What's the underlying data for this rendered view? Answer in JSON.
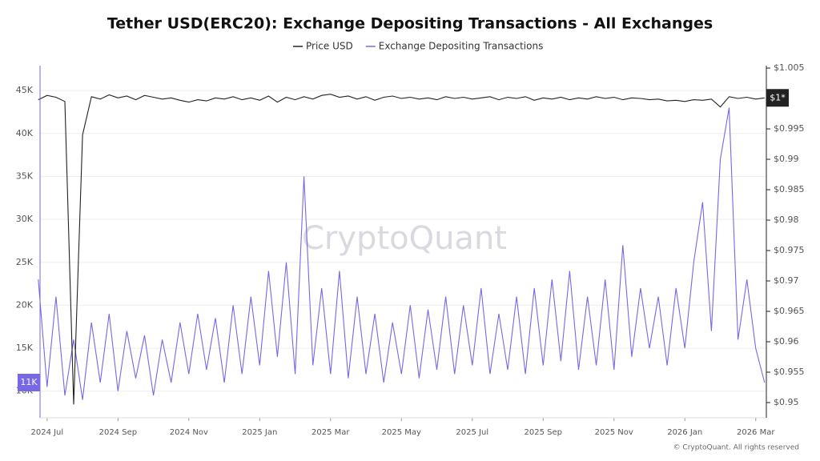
{
  "chart_data": {
    "type": "line",
    "title": "Tether USD(ERC20): Exchange Depositing Transactions - All Exchanges",
    "watermark": "CryptoQuant",
    "footer": "© CryptoQuant. All rights reserved",
    "x": [
      -0.25,
      0,
      0.25,
      0.5,
      0.75,
      1,
      1.25,
      1.5,
      1.75,
      2,
      2.25,
      2.5,
      2.75,
      3,
      3.25,
      3.5,
      3.75,
      4,
      4.25,
      4.5,
      4.75,
      5,
      5.25,
      5.5,
      5.75,
      6,
      6.25,
      6.5,
      6.75,
      7,
      7.25,
      7.5,
      7.75,
      8,
      8.25,
      8.5,
      8.75,
      9,
      9.25,
      9.5,
      9.75,
      10,
      10.25,
      10.5,
      10.75,
      11,
      11.25,
      11.5,
      11.75,
      12,
      12.25,
      12.5,
      12.75,
      13,
      13.25,
      13.5,
      13.75,
      14,
      14.25,
      14.5,
      14.75,
      15,
      15.25,
      15.5,
      15.75,
      16,
      16.25,
      16.5,
      16.75,
      17,
      17.25,
      17.5,
      17.75,
      18,
      18.25,
      18.5,
      18.75,
      19,
      19.25,
      19.5,
      19.75,
      20,
      20.25
    ],
    "xlim": [
      -0.2,
      20.3
    ],
    "xticks": [
      {
        "value": 0,
        "label": "2024 Jul"
      },
      {
        "value": 2,
        "label": "2024 Sep"
      },
      {
        "value": 4,
        "label": "2024 Nov"
      },
      {
        "value": 6,
        "label": "2025 Jan"
      },
      {
        "value": 8,
        "label": "2025 Mar"
      },
      {
        "value": 10,
        "label": "2025 May"
      },
      {
        "value": 12,
        "label": "2025 Jul"
      },
      {
        "value": 14,
        "label": "2025 Sep"
      },
      {
        "value": 16,
        "label": "2025 Nov"
      },
      {
        "value": 18,
        "label": "2026 Jan"
      },
      {
        "value": 20,
        "label": "2026 Mar"
      }
    ],
    "ylim": [
      6900,
      47900
    ],
    "yticks": [
      {
        "value": 10000,
        "label": "10K"
      },
      {
        "value": 15000,
        "label": "15K"
      },
      {
        "value": 20000,
        "label": "20K"
      },
      {
        "value": 25000,
        "label": "25K"
      },
      {
        "value": 30000,
        "label": "30K"
      },
      {
        "value": 35000,
        "label": "35K"
      },
      {
        "value": 40000,
        "label": "40K"
      },
      {
        "value": 45000,
        "label": "45K"
      }
    ],
    "y2lim": [
      0.9475,
      1.0054
    ],
    "y2ticks": [
      {
        "value": 0.95,
        "label": "$0.95"
      },
      {
        "value": 0.955,
        "label": "$0.955"
      },
      {
        "value": 0.96,
        "label": "$0.96"
      },
      {
        "value": 0.965,
        "label": "$0.965"
      },
      {
        "value": 0.97,
        "label": "$0.97"
      },
      {
        "value": 0.975,
        "label": "$0.975"
      },
      {
        "value": 0.98,
        "label": "$0.98"
      },
      {
        "value": 0.985,
        "label": "$0.985"
      },
      {
        "value": 0.99,
        "label": "$0.99"
      },
      {
        "value": 0.995,
        "label": "$0.995"
      },
      {
        "value": 1.005,
        "label": "$1.005"
      }
    ],
    "grid": true,
    "series": [
      {
        "name": "Price USD",
        "color": "#222222",
        "axis": "y2",
        "end_label": "$1*",
        "values": [
          0.9998,
          1.0005,
          1.0002,
          0.9995,
          0.9497,
          0.994,
          1.0003,
          0.9999,
          1.0006,
          1.0001,
          1.0004,
          0.9998,
          1.0005,
          1.0002,
          0.9999,
          1.0001,
          0.9997,
          0.9994,
          0.9998,
          0.9996,
          1.0001,
          0.9999,
          1.0003,
          0.9998,
          1.0001,
          0.9997,
          1.0004,
          0.9994,
          1.0002,
          0.9998,
          1.0003,
          0.9999,
          1.0005,
          1.0007,
          1.0002,
          1.0004,
          0.9999,
          1.0003,
          0.9997,
          1.0002,
          1.0004,
          1.0,
          1.0002,
          0.9999,
          1.0001,
          0.9998,
          1.0003,
          1.0,
          1.0002,
          0.9999,
          1.0001,
          1.0003,
          0.9998,
          1.0002,
          1.0,
          1.0003,
          0.9997,
          1.0001,
          0.9999,
          1.0002,
          0.9998,
          1.0001,
          0.9999,
          1.0003,
          1.0,
          1.0002,
          0.9998,
          1.0001,
          1.0,
          0.9998,
          0.9999,
          0.9996,
          0.9997,
          0.9995,
          0.9998,
          0.9997,
          0.9999,
          0.9986,
          1.0003,
          1.0,
          1.0002,
          0.9999,
          1.0001
        ]
      },
      {
        "name": "Exchange Depositing Transactions",
        "color": "#7668e6",
        "axis": "y",
        "end_label": "11K",
        "values": [
          23000,
          10500,
          21000,
          9500,
          16000,
          9000,
          18000,
          11000,
          19000,
          10000,
          17000,
          11500,
          16500,
          9500,
          16000,
          11000,
          18000,
          12000,
          19000,
          12500,
          18500,
          11000,
          20000,
          12000,
          21000,
          13000,
          24000,
          14000,
          25000,
          12000,
          35000,
          13000,
          22000,
          12000,
          24000,
          11500,
          21000,
          12000,
          19000,
          11000,
          18000,
          12000,
          20000,
          11500,
          19500,
          12500,
          21000,
          12000,
          20000,
          13000,
          22000,
          12000,
          19000,
          12500,
          21000,
          12000,
          22000,
          13000,
          23000,
          13500,
          24000,
          12500,
          21000,
          13000,
          23000,
          12500,
          27000,
          14000,
          22000,
          15000,
          21000,
          13000,
          22000,
          15000,
          25000,
          32000,
          17000,
          37000,
          43000,
          16000,
          23000,
          15000,
          11000
        ]
      }
    ]
  }
}
